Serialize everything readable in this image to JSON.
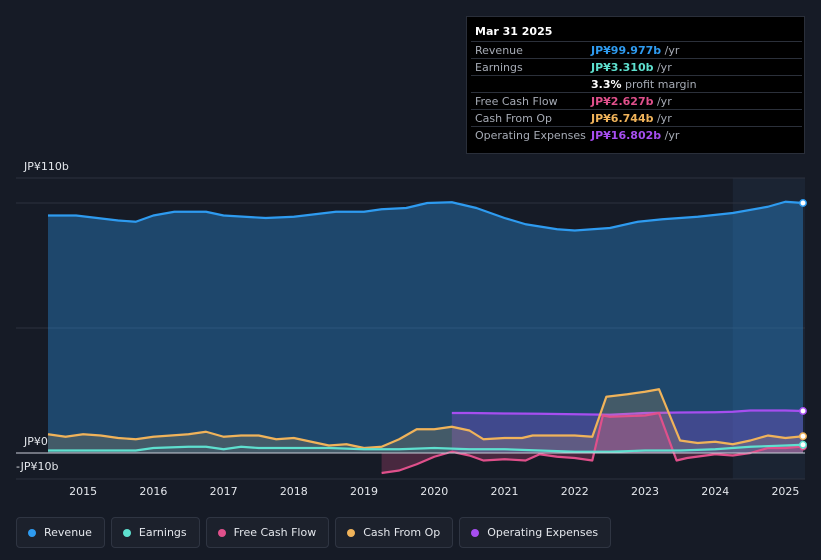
{
  "tooltip": {
    "date": "Mar 31 2025",
    "rows": [
      {
        "label": "Revenue",
        "value": "JP¥99.977b",
        "unit": "/yr",
        "color": "#2e9bf0"
      },
      {
        "label": "Earnings",
        "value": "JP¥3.310b",
        "unit": "/yr",
        "color": "#5ee0cf"
      },
      {
        "label": "",
        "value": "3.3%",
        "unit": "profit margin",
        "color": "#ffffff"
      },
      {
        "label": "Free Cash Flow",
        "value": "JP¥2.627b",
        "unit": "/yr",
        "color": "#e0508b"
      },
      {
        "label": "Cash From Op",
        "value": "JP¥6.744b",
        "unit": "/yr",
        "color": "#f0b35a"
      },
      {
        "label": "Operating Expenses",
        "value": "JP¥16.802b",
        "unit": "/yr",
        "color": "#a64ef0"
      }
    ]
  },
  "legend": [
    {
      "label": "Revenue",
      "color": "#2e9bf0"
    },
    {
      "label": "Earnings",
      "color": "#5ee0cf"
    },
    {
      "label": "Free Cash Flow",
      "color": "#e0508b"
    },
    {
      "label": "Cash From Op",
      "color": "#f0b35a"
    },
    {
      "label": "Operating Expenses",
      "color": "#a64ef0"
    }
  ],
  "chart_data": {
    "type": "line",
    "title": "",
    "y_unit": "JP¥ billions",
    "ylim": [
      -10,
      110
    ],
    "y_tick_labels": [
      {
        "value": 110,
        "label": "JP¥110b"
      },
      {
        "value": 0,
        "label": "JP¥0"
      },
      {
        "value": -10,
        "label": "-JP¥10b"
      }
    ],
    "xlim": [
      2014.5,
      2025.25
    ],
    "x_ticks": [
      2015,
      2016,
      2017,
      2018,
      2019,
      2020,
      2021,
      2022,
      2023,
      2024,
      2025
    ],
    "forecast_shade_start": 2024.25,
    "series": [
      {
        "name": "Revenue",
        "color": "#2e9bf0",
        "fill": true,
        "points": [
          [
            2014.5,
            95
          ],
          [
            2014.9,
            95
          ],
          [
            2015.2,
            94
          ],
          [
            2015.5,
            93
          ],
          [
            2015.75,
            92.5
          ],
          [
            2016.0,
            95
          ],
          [
            2016.3,
            96.5
          ],
          [
            2016.75,
            96.5
          ],
          [
            2017.0,
            95
          ],
          [
            2017.3,
            94.5
          ],
          [
            2017.6,
            94
          ],
          [
            2018.0,
            94.5
          ],
          [
            2018.3,
            95.5
          ],
          [
            2018.6,
            96.5
          ],
          [
            2019.0,
            96.5
          ],
          [
            2019.25,
            97.5
          ],
          [
            2019.6,
            98
          ],
          [
            2019.9,
            100
          ],
          [
            2020.25,
            100.3
          ],
          [
            2020.6,
            98
          ],
          [
            2021.0,
            94
          ],
          [
            2021.3,
            91.5
          ],
          [
            2021.75,
            89.5
          ],
          [
            2022.0,
            89
          ],
          [
            2022.5,
            90
          ],
          [
            2022.9,
            92.5
          ],
          [
            2023.25,
            93.5
          ],
          [
            2023.75,
            94.5
          ],
          [
            2024.25,
            96
          ],
          [
            2024.75,
            98.5
          ],
          [
            2025.0,
            100.5
          ],
          [
            2025.25,
            100
          ]
        ]
      },
      {
        "name": "Earnings",
        "color": "#5ee0cf",
        "fill": false,
        "points": [
          [
            2014.5,
            1
          ],
          [
            2015.0,
            1
          ],
          [
            2015.5,
            1
          ],
          [
            2015.75,
            1
          ],
          [
            2016.0,
            2
          ],
          [
            2016.5,
            2.5
          ],
          [
            2016.75,
            2.5
          ],
          [
            2017.0,
            1.5
          ],
          [
            2017.25,
            2.5
          ],
          [
            2017.5,
            2
          ],
          [
            2018.0,
            2
          ],
          [
            2018.5,
            2
          ],
          [
            2019.0,
            1.5
          ],
          [
            2019.5,
            1.5
          ],
          [
            2020.0,
            2
          ],
          [
            2020.5,
            1.5
          ],
          [
            2021.0,
            1.5
          ],
          [
            2021.5,
            1
          ],
          [
            2022.0,
            0.5
          ],
          [
            2022.5,
            0.5
          ],
          [
            2023.0,
            1
          ],
          [
            2023.5,
            1
          ],
          [
            2024.0,
            1.5
          ],
          [
            2024.5,
            2.5
          ],
          [
            2025.0,
            3
          ],
          [
            2025.25,
            3.3
          ]
        ]
      },
      {
        "name": "Free Cash Flow",
        "color": "#e0508b",
        "fill": true,
        "points": [
          [
            2019.25,
            -8
          ],
          [
            2019.5,
            -7
          ],
          [
            2019.75,
            -4.5
          ],
          [
            2020.0,
            -1.5
          ],
          [
            2020.25,
            0.5
          ],
          [
            2020.5,
            -1
          ],
          [
            2020.7,
            -3
          ],
          [
            2021.0,
            -2.5
          ],
          [
            2021.3,
            -3
          ],
          [
            2021.5,
            -0.5
          ],
          [
            2021.75,
            -1.5
          ],
          [
            2022.0,
            -2
          ],
          [
            2022.25,
            -3
          ],
          [
            2022.4,
            15
          ],
          [
            2022.5,
            14.5
          ],
          [
            2023.0,
            15
          ],
          [
            2023.2,
            16
          ],
          [
            2023.45,
            -3
          ],
          [
            2023.6,
            -2
          ],
          [
            2024.0,
            -0.5
          ],
          [
            2024.25,
            -1
          ],
          [
            2024.5,
            0
          ],
          [
            2024.75,
            2
          ],
          [
            2025.0,
            2
          ],
          [
            2025.25,
            2.6
          ]
        ]
      },
      {
        "name": "Cash From Op",
        "color": "#f0b35a",
        "fill": true,
        "points": [
          [
            2014.5,
            7.5
          ],
          [
            2014.75,
            6.5
          ],
          [
            2015.0,
            7.5
          ],
          [
            2015.25,
            7
          ],
          [
            2015.5,
            6
          ],
          [
            2015.75,
            5.5
          ],
          [
            2016.0,
            6.5
          ],
          [
            2016.25,
            7
          ],
          [
            2016.5,
            7.5
          ],
          [
            2016.75,
            8.5
          ],
          [
            2017.0,
            6.5
          ],
          [
            2017.25,
            7
          ],
          [
            2017.5,
            7
          ],
          [
            2017.75,
            5.5
          ],
          [
            2018.0,
            6
          ],
          [
            2018.25,
            4.5
          ],
          [
            2018.5,
            3
          ],
          [
            2018.75,
            3.5
          ],
          [
            2019.0,
            2
          ],
          [
            2019.25,
            2.5
          ],
          [
            2019.5,
            5.5
          ],
          [
            2019.75,
            9.5
          ],
          [
            2020.0,
            9.5
          ],
          [
            2020.25,
            10.5
          ],
          [
            2020.5,
            9
          ],
          [
            2020.7,
            5.5
          ],
          [
            2021.0,
            6
          ],
          [
            2021.25,
            6
          ],
          [
            2021.4,
            7
          ],
          [
            2021.75,
            7
          ],
          [
            2022.0,
            7
          ],
          [
            2022.25,
            6.5
          ],
          [
            2022.45,
            22.5
          ],
          [
            2022.75,
            23.5
          ],
          [
            2023.0,
            24.5
          ],
          [
            2023.2,
            25.5
          ],
          [
            2023.5,
            5
          ],
          [
            2023.75,
            4
          ],
          [
            2024.0,
            4.5
          ],
          [
            2024.25,
            3.5
          ],
          [
            2024.5,
            5
          ],
          [
            2024.75,
            7
          ],
          [
            2025.0,
            6
          ],
          [
            2025.25,
            6.7
          ]
        ]
      },
      {
        "name": "Operating Expenses",
        "color": "#a64ef0",
        "fill": true,
        "points": [
          [
            2020.25,
            16
          ],
          [
            2020.5,
            16
          ],
          [
            2021.0,
            15.8
          ],
          [
            2021.5,
            15.7
          ],
          [
            2022.0,
            15.5
          ],
          [
            2022.5,
            15.3
          ],
          [
            2023.0,
            16
          ],
          [
            2023.5,
            16.2
          ],
          [
            2024.0,
            16.3
          ],
          [
            2024.25,
            16.5
          ],
          [
            2024.5,
            17
          ],
          [
            2025.0,
            17
          ],
          [
            2025.25,
            16.8
          ]
        ]
      }
    ]
  }
}
